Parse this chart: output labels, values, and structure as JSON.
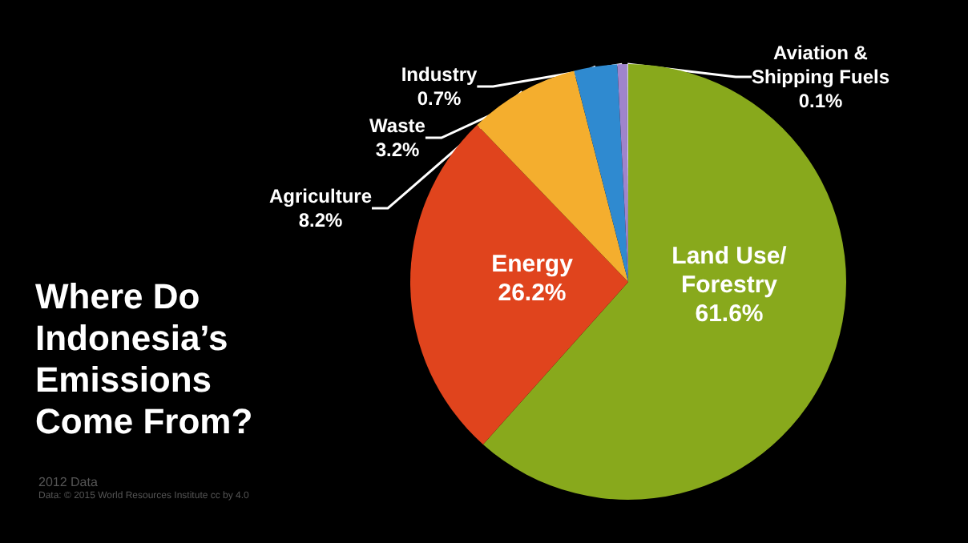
{
  "chart_data": {
    "type": "pie",
    "title": "Where Do\nIndonesia’s\nEmissions\nCome From?",
    "categories": [
      "Land Use/\nForestry",
      "Energy",
      "Agriculture",
      "Waste",
      "Industry",
      "Aviation &\nShipping Fuels"
    ],
    "values": [
      61.6,
      26.2,
      8.2,
      3.2,
      0.7,
      0.1
    ],
    "value_labels": [
      "61.6%",
      "26.2%",
      "8.2%",
      "3.2%",
      "0.7%",
      "0.1%"
    ],
    "colors": [
      "#88a91c",
      "#e0441d",
      "#f4ae2e",
      "#2f8ad0",
      "#9f84cc",
      "#d8d0ec"
    ],
    "annotations": [
      "2012 Data",
      "Data: © 2015 World Resources Institute cc by 4.0"
    ],
    "legend": false
  }
}
